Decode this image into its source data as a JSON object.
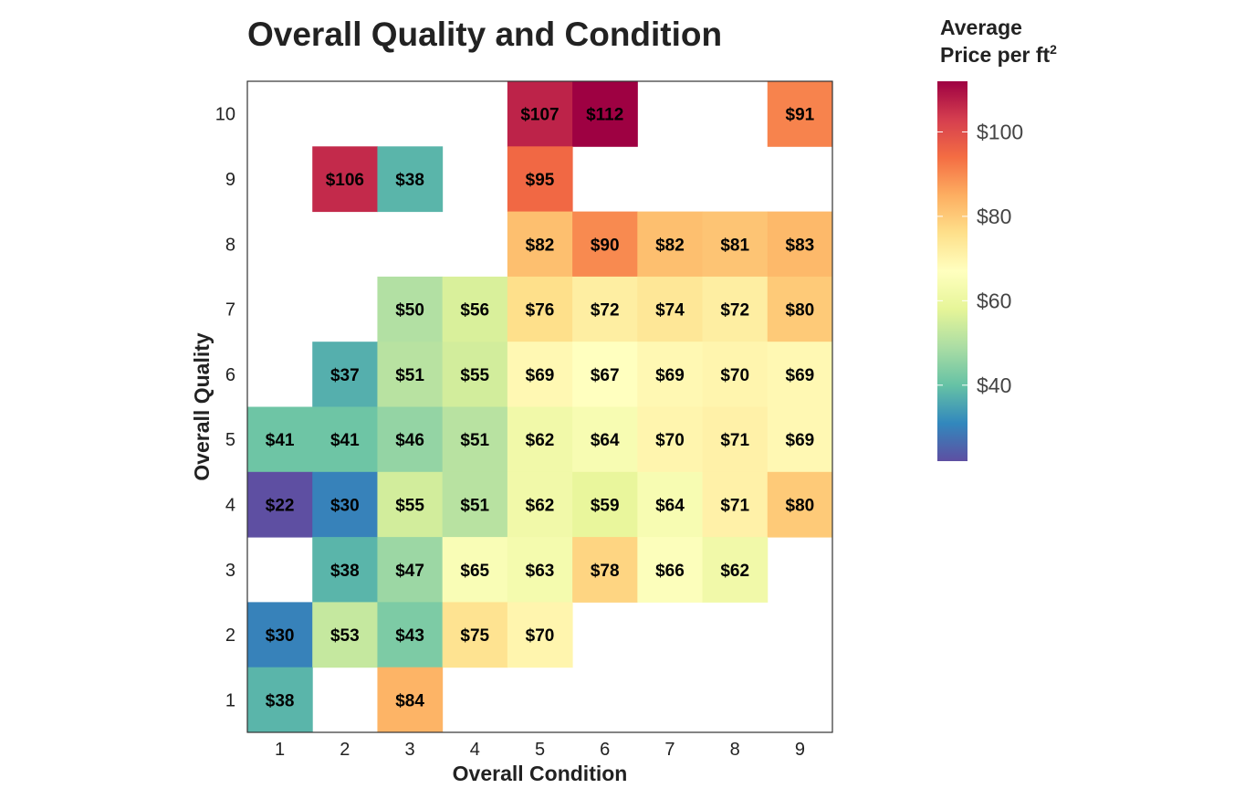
{
  "chart_data": {
    "type": "heatmap",
    "title": "Overall Quality and Condition",
    "xlabel": "Overall Condition",
    "ylabel": "Overall Quality",
    "x_categories": [
      "1",
      "2",
      "3",
      "4",
      "5",
      "6",
      "7",
      "8",
      "9"
    ],
    "y_categories": [
      "1",
      "2",
      "3",
      "4",
      "5",
      "6",
      "7",
      "8",
      "9",
      "10"
    ],
    "colorscale": "Spectral",
    "value_range": [
      22,
      112
    ],
    "legend": {
      "title_line1": "Average",
      "title_line2": "Price per ft",
      "title_sup": "2",
      "placement": "right",
      "ticks": [
        40,
        60,
        80,
        100
      ],
      "tick_labels": [
        "$40",
        "$60",
        "$80",
        "$100"
      ]
    },
    "cells": [
      {
        "condition": 5,
        "quality": 10,
        "value": 107,
        "label": "$107"
      },
      {
        "condition": 6,
        "quality": 10,
        "value": 112,
        "label": "$112"
      },
      {
        "condition": 9,
        "quality": 10,
        "value": 91,
        "label": "$91"
      },
      {
        "condition": 2,
        "quality": 9,
        "value": 106,
        "label": "$106"
      },
      {
        "condition": 3,
        "quality": 9,
        "value": 38,
        "label": "$38"
      },
      {
        "condition": 5,
        "quality": 9,
        "value": 95,
        "label": "$95"
      },
      {
        "condition": 5,
        "quality": 8,
        "value": 82,
        "label": "$82"
      },
      {
        "condition": 6,
        "quality": 8,
        "value": 90,
        "label": "$90"
      },
      {
        "condition": 7,
        "quality": 8,
        "value": 82,
        "label": "$82"
      },
      {
        "condition": 8,
        "quality": 8,
        "value": 81,
        "label": "$81"
      },
      {
        "condition": 9,
        "quality": 8,
        "value": 83,
        "label": "$83"
      },
      {
        "condition": 3,
        "quality": 7,
        "value": 50,
        "label": "$50"
      },
      {
        "condition": 4,
        "quality": 7,
        "value": 56,
        "label": "$56"
      },
      {
        "condition": 5,
        "quality": 7,
        "value": 76,
        "label": "$76"
      },
      {
        "condition": 6,
        "quality": 7,
        "value": 72,
        "label": "$72"
      },
      {
        "condition": 7,
        "quality": 7,
        "value": 74,
        "label": "$74"
      },
      {
        "condition": 8,
        "quality": 7,
        "value": 72,
        "label": "$72"
      },
      {
        "condition": 9,
        "quality": 7,
        "value": 80,
        "label": "$80"
      },
      {
        "condition": 2,
        "quality": 6,
        "value": 37,
        "label": "$37"
      },
      {
        "condition": 3,
        "quality": 6,
        "value": 51,
        "label": "$51"
      },
      {
        "condition": 4,
        "quality": 6,
        "value": 55,
        "label": "$55"
      },
      {
        "condition": 5,
        "quality": 6,
        "value": 69,
        "label": "$69"
      },
      {
        "condition": 6,
        "quality": 6,
        "value": 67,
        "label": "$67"
      },
      {
        "condition": 7,
        "quality": 6,
        "value": 69,
        "label": "$69"
      },
      {
        "condition": 8,
        "quality": 6,
        "value": 70,
        "label": "$70"
      },
      {
        "condition": 9,
        "quality": 6,
        "value": 69,
        "label": "$69"
      },
      {
        "condition": 1,
        "quality": 5,
        "value": 41,
        "label": "$41"
      },
      {
        "condition": 2,
        "quality": 5,
        "value": 41,
        "label": "$41"
      },
      {
        "condition": 3,
        "quality": 5,
        "value": 46,
        "label": "$46"
      },
      {
        "condition": 4,
        "quality": 5,
        "value": 51,
        "label": "$51"
      },
      {
        "condition": 5,
        "quality": 5,
        "value": 62,
        "label": "$62"
      },
      {
        "condition": 6,
        "quality": 5,
        "value": 64,
        "label": "$64"
      },
      {
        "condition": 7,
        "quality": 5,
        "value": 70,
        "label": "$70"
      },
      {
        "condition": 8,
        "quality": 5,
        "value": 71,
        "label": "$71"
      },
      {
        "condition": 9,
        "quality": 5,
        "value": 69,
        "label": "$69"
      },
      {
        "condition": 1,
        "quality": 4,
        "value": 22,
        "label": "$22"
      },
      {
        "condition": 2,
        "quality": 4,
        "value": 30,
        "label": "$30"
      },
      {
        "condition": 3,
        "quality": 4,
        "value": 55,
        "label": "$55"
      },
      {
        "condition": 4,
        "quality": 4,
        "value": 51,
        "label": "$51"
      },
      {
        "condition": 5,
        "quality": 4,
        "value": 62,
        "label": "$62"
      },
      {
        "condition": 6,
        "quality": 4,
        "value": 59,
        "label": "$59"
      },
      {
        "condition": 7,
        "quality": 4,
        "value": 64,
        "label": "$64"
      },
      {
        "condition": 8,
        "quality": 4,
        "value": 71,
        "label": "$71"
      },
      {
        "condition": 9,
        "quality": 4,
        "value": 80,
        "label": "$80"
      },
      {
        "condition": 2,
        "quality": 3,
        "value": 38,
        "label": "$38"
      },
      {
        "condition": 3,
        "quality": 3,
        "value": 47,
        "label": "$47"
      },
      {
        "condition": 4,
        "quality": 3,
        "value": 65,
        "label": "$65"
      },
      {
        "condition": 5,
        "quality": 3,
        "value": 63,
        "label": "$63"
      },
      {
        "condition": 6,
        "quality": 3,
        "value": 78,
        "label": "$78"
      },
      {
        "condition": 7,
        "quality": 3,
        "value": 66,
        "label": "$66"
      },
      {
        "condition": 8,
        "quality": 3,
        "value": 62,
        "label": "$62"
      },
      {
        "condition": 1,
        "quality": 2,
        "value": 30,
        "label": "$30"
      },
      {
        "condition": 2,
        "quality": 2,
        "value": 53,
        "label": "$53"
      },
      {
        "condition": 3,
        "quality": 2,
        "value": 43,
        "label": "$43"
      },
      {
        "condition": 4,
        "quality": 2,
        "value": 75,
        "label": "$75"
      },
      {
        "condition": 5,
        "quality": 2,
        "value": 70,
        "label": "$70"
      },
      {
        "condition": 1,
        "quality": 1,
        "value": 38,
        "label": "$38"
      },
      {
        "condition": 3,
        "quality": 1,
        "value": 84,
        "label": "$84"
      }
    ]
  }
}
